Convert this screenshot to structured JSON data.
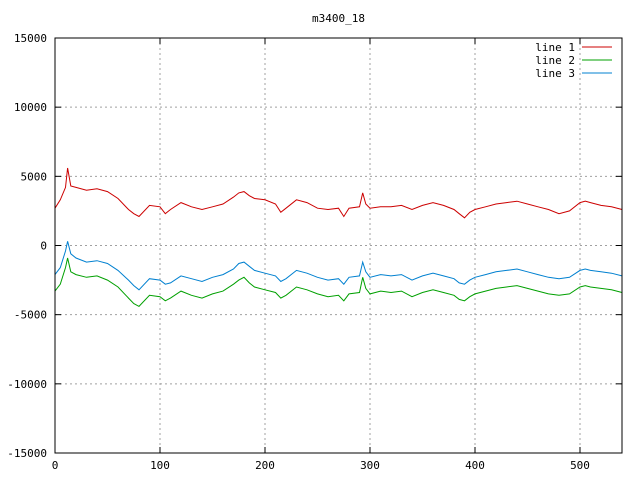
{
  "chart_data": {
    "type": "line",
    "title": "m3400_18",
    "xlabel": "",
    "ylabel": "",
    "xlim": [
      0,
      540
    ],
    "ylim": [
      -15000,
      15000
    ],
    "x_ticks": [
      0,
      100,
      200,
      300,
      400,
      500
    ],
    "y_ticks": [
      -15000,
      -10000,
      -5000,
      0,
      5000,
      10000,
      15000
    ],
    "x_tick_labels": [
      "0",
      "100",
      "200",
      "300",
      "400",
      "500"
    ],
    "y_tick_labels": [
      "-15000",
      "-10000",
      "-5000",
      "0",
      "5000",
      "10000",
      "15000"
    ],
    "grid": true,
    "legend_position": "top-right",
    "x": [
      0,
      5,
      10,
      12,
      15,
      20,
      30,
      40,
      50,
      60,
      70,
      75,
      80,
      90,
      100,
      105,
      110,
      120,
      130,
      140,
      150,
      160,
      170,
      175,
      180,
      185,
      190,
      200,
      210,
      215,
      220,
      230,
      240,
      250,
      260,
      270,
      275,
      280,
      290,
      293,
      296,
      300,
      310,
      320,
      330,
      340,
      350,
      360,
      370,
      380,
      385,
      390,
      395,
      400,
      410,
      420,
      430,
      440,
      450,
      460,
      470,
      480,
      490,
      500,
      505,
      510,
      520,
      530,
      540
    ],
    "series": [
      {
        "name": "line 1",
        "color": "#cc0000",
        "values": [
          2700,
          3300,
          4200,
          5600,
          4300,
          4200,
          4000,
          4100,
          3900,
          3400,
          2600,
          2300,
          2100,
          2900,
          2800,
          2300,
          2600,
          3100,
          2800,
          2600,
          2800,
          3000,
          3500,
          3800,
          3900,
          3600,
          3400,
          3300,
          3000,
          2400,
          2700,
          3300,
          3100,
          2700,
          2600,
          2700,
          2100,
          2700,
          2800,
          3800,
          3000,
          2700,
          2800,
          2800,
          2900,
          2600,
          2900,
          3100,
          2900,
          2600,
          2300,
          2000,
          2400,
          2600,
          2800,
          3000,
          3100,
          3200,
          3000,
          2800,
          2600,
          2300,
          2500,
          3100,
          3200,
          3100,
          2900,
          2800,
          2600
        ]
      },
      {
        "name": "line 2",
        "color": "#00a000",
        "values": [
          -3300,
          -2800,
          -1600,
          -900,
          -1900,
          -2100,
          -2300,
          -2200,
          -2500,
          -3000,
          -3800,
          -4200,
          -4400,
          -3600,
          -3700,
          -4000,
          -3800,
          -3300,
          -3600,
          -3800,
          -3500,
          -3300,
          -2800,
          -2500,
          -2300,
          -2700,
          -3000,
          -3200,
          -3400,
          -3800,
          -3600,
          -3000,
          -3200,
          -3500,
          -3700,
          -3600,
          -4000,
          -3500,
          -3400,
          -2300,
          -3100,
          -3500,
          -3300,
          -3400,
          -3300,
          -3700,
          -3400,
          -3200,
          -3400,
          -3600,
          -3900,
          -4000,
          -3700,
          -3500,
          -3300,
          -3100,
          -3000,
          -2900,
          -3100,
          -3300,
          -3500,
          -3600,
          -3500,
          -3000,
          -2900,
          -3000,
          -3100,
          -3200,
          -3400
        ]
      },
      {
        "name": "line 3",
        "color": "#0080d0",
        "values": [
          -2100,
          -1600,
          -400,
          300,
          -600,
          -900,
          -1200,
          -1100,
          -1300,
          -1800,
          -2500,
          -2900,
          -3200,
          -2400,
          -2500,
          -2800,
          -2700,
          -2200,
          -2400,
          -2600,
          -2300,
          -2100,
          -1700,
          -1300,
          -1200,
          -1500,
          -1800,
          -2000,
          -2200,
          -2600,
          -2400,
          -1800,
          -2000,
          -2300,
          -2500,
          -2400,
          -2800,
          -2300,
          -2200,
          -1200,
          -1900,
          -2300,
          -2100,
          -2200,
          -2100,
          -2500,
          -2200,
          -2000,
          -2200,
          -2400,
          -2700,
          -2800,
          -2500,
          -2300,
          -2100,
          -1900,
          -1800,
          -1700,
          -1900,
          -2100,
          -2300,
          -2400,
          -2300,
          -1800,
          -1700,
          -1800,
          -1900,
          -2000,
          -2200
        ]
      }
    ]
  }
}
